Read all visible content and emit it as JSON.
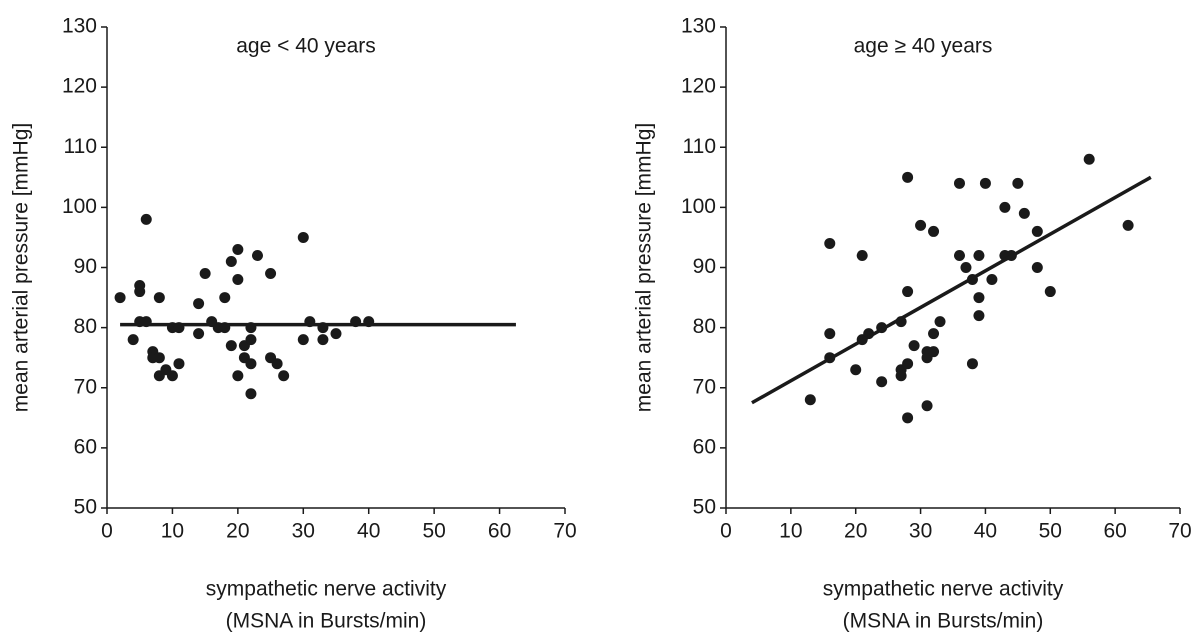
{
  "chart_data": [
    {
      "type": "scatter",
      "title": "age < 40 years",
      "ylabel": "mean arterial pressure [mmHg]",
      "xlabel": [
        "sympathetic nerve activity",
        "(MSNA in Bursts/min)"
      ],
      "xlim": [
        0,
        70
      ],
      "ylim": [
        50,
        130
      ],
      "xticks": [
        0,
        10,
        20,
        30,
        40,
        50,
        60,
        70
      ],
      "yticks": [
        50,
        60,
        70,
        80,
        90,
        100,
        110,
        120,
        130
      ],
      "color": "#1a1a1a",
      "x": [
        2,
        4,
        5,
        5,
        5,
        6,
        6,
        7,
        7,
        8,
        8,
        8,
        9,
        10,
        10,
        11,
        11,
        14,
        14,
        15,
        16,
        17,
        18,
        18,
        19,
        19,
        20,
        20,
        20,
        21,
        21,
        22,
        22,
        22,
        22,
        23,
        25,
        25,
        26,
        27,
        30,
        30,
        31,
        33,
        33,
        35,
        38,
        40
      ],
      "y": [
        85,
        78,
        87,
        86,
        81,
        98,
        81,
        76,
        75,
        85,
        75,
        72,
        73,
        72,
        80,
        80,
        74,
        84,
        79,
        89,
        81,
        80,
        85,
        80,
        91,
        77,
        93,
        88,
        72,
        77,
        75,
        80,
        78,
        69,
        74,
        92,
        89,
        75,
        74,
        72,
        95,
        78,
        81,
        80,
        78,
        79,
        81,
        81
      ],
      "fit": {
        "x": [
          2,
          62.5
        ],
        "y": [
          80.5,
          80.5
        ]
      }
    },
    {
      "type": "scatter",
      "title": "age ≥ 40 years",
      "ylabel": "mean arterial pressure [mmHg]",
      "xlabel": [
        "sympathetic nerve activity",
        "(MSNA in Bursts/min)"
      ],
      "xlim": [
        0,
        70
      ],
      "ylim": [
        50,
        130
      ],
      "xticks": [
        0,
        10,
        20,
        30,
        40,
        50,
        60,
        70
      ],
      "yticks": [
        50,
        60,
        70,
        80,
        90,
        100,
        110,
        120,
        130
      ],
      "color": "#1a1a1a",
      "x": [
        13,
        16,
        16,
        16,
        20,
        21,
        21,
        22,
        24,
        24,
        27,
        27,
        27,
        28,
        28,
        28,
        28,
        29,
        30,
        31,
        31,
        31,
        32,
        32,
        32,
        33,
        36,
        36,
        37,
        38,
        38,
        39,
        39,
        39,
        40,
        41,
        43,
        43,
        44,
        45,
        46,
        48,
        48,
        50,
        56,
        62
      ],
      "y": [
        68,
        94,
        79,
        75,
        73,
        92,
        78,
        79,
        80,
        71,
        81,
        73,
        72,
        105,
        86,
        74,
        65,
        77,
        97,
        76,
        75,
        67,
        96,
        79,
        76,
        81,
        104,
        92,
        90,
        88,
        74,
        92,
        85,
        82,
        104,
        88,
        100,
        92,
        92,
        104,
        99,
        96,
        90,
        86,
        108,
        97
      ],
      "fit": {
        "x": [
          4,
          65.5
        ],
        "y": [
          67.5,
          105
        ]
      }
    }
  ]
}
